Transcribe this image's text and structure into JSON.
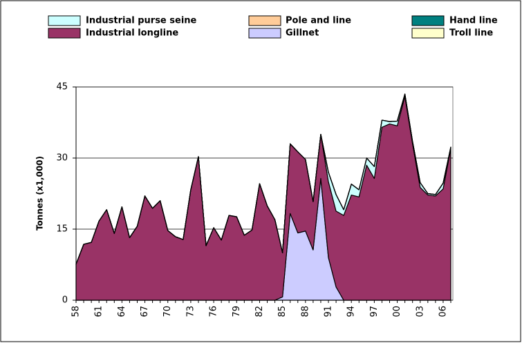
{
  "chart_data": {
    "type": "stacked-area",
    "y_label": "Tonnes (x1,000)",
    "categories": [
      "58",
      null,
      null,
      "61",
      null,
      null,
      "64",
      null,
      null,
      "67",
      null,
      null,
      "70",
      null,
      null,
      "73",
      null,
      null,
      "76",
      null,
      null,
      "79",
      null,
      null,
      "82",
      null,
      null,
      "85",
      null,
      null,
      "88",
      null,
      null,
      "91",
      null,
      null,
      "94",
      null,
      null,
      "97",
      null,
      null,
      "00",
      null,
      null,
      "03",
      null,
      null,
      "06",
      null
    ],
    "ylim": [
      0,
      45
    ],
    "yticks": [
      0,
      15,
      30,
      45
    ],
    "grid": true,
    "series": [
      {
        "name": "Gillnet",
        "color": "#ccccff",
        "values": [
          0,
          0,
          0,
          0,
          0,
          0,
          0,
          0,
          0,
          0,
          0,
          0,
          0,
          0,
          0,
          0,
          0,
          0,
          0,
          0,
          0,
          0,
          0,
          0,
          0,
          0,
          0,
          0.7,
          18.3,
          14.2,
          14.6,
          10.6,
          25.7,
          9.0,
          2.8,
          0,
          0,
          0,
          0,
          0,
          0,
          0,
          0,
          0,
          0,
          0,
          0,
          0,
          0,
          0
        ]
      },
      {
        "name": "Industrial longline",
        "color": "#993366",
        "values": [
          7.6,
          11.8,
          12.2,
          16.7,
          19.1,
          14.1,
          19.7,
          13.2,
          15.6,
          22.0,
          19.4,
          21.0,
          14.7,
          13.4,
          12.8,
          23.3,
          30.3,
          11.5,
          15.3,
          12.7,
          17.9,
          17.6,
          13.7,
          14.8,
          24.6,
          19.9,
          17.0,
          9.3,
          14.7,
          17.1,
          15.1,
          10.2,
          9.3,
          16.0,
          16.0,
          17.9,
          22.2,
          21.8,
          28.5,
          25.7,
          36.5,
          37.2,
          36.8,
          43.0,
          33.0,
          23.8,
          22.2,
          22.0,
          23.5,
          32.0
        ]
      },
      {
        "name": "Industrial purse seine",
        "color": "#ccffff",
        "values": [
          0,
          0,
          0,
          0,
          0,
          0,
          0,
          0,
          0,
          0,
          0,
          0,
          0,
          0,
          0,
          0,
          0,
          0,
          0,
          0,
          0,
          0,
          0,
          0,
          0,
          0,
          0,
          0,
          0,
          0,
          0,
          0,
          0,
          2,
          3.5,
          1.2,
          2.3,
          1.5,
          1.5,
          2.5,
          1.5,
          0.5,
          1,
          0.5,
          0.5,
          1,
          0.3,
          0.3,
          1.2,
          0.3
        ]
      },
      {
        "name": "Pole and line",
        "color": "#ffcc99",
        "values": [
          0,
          0,
          0,
          0,
          0,
          0,
          0,
          0,
          0,
          0,
          0,
          0,
          0,
          0,
          0,
          0,
          0,
          0,
          0,
          0,
          0,
          0,
          0,
          0,
          0,
          0,
          0,
          0,
          0,
          0,
          0,
          0,
          0,
          0,
          0,
          0,
          0,
          0,
          0,
          0,
          0,
          0,
          0,
          0,
          0,
          0,
          0,
          0,
          0,
          0
        ]
      },
      {
        "name": "Hand line",
        "color": "#008080",
        "values": [
          0,
          0,
          0,
          0,
          0,
          0,
          0,
          0,
          0,
          0,
          0,
          0,
          0,
          0,
          0,
          0,
          0,
          0,
          0,
          0,
          0,
          0,
          0,
          0,
          0,
          0,
          0,
          0,
          0,
          0,
          0,
          0,
          0,
          0,
          0,
          0,
          0,
          0,
          0,
          0,
          0,
          0,
          0,
          0,
          0,
          0,
          0,
          0,
          0,
          0
        ]
      },
      {
        "name": "Troll line",
        "color": "#ffffcc",
        "values": [
          0,
          0,
          0,
          0,
          0,
          0,
          0,
          0,
          0,
          0,
          0,
          0,
          0,
          0,
          0,
          0,
          0,
          0,
          0,
          0,
          0,
          0,
          0,
          0,
          0,
          0,
          0,
          0,
          0,
          0,
          0,
          0,
          0,
          0,
          0,
          0,
          0,
          0,
          0,
          0,
          0,
          0,
          0,
          0,
          0,
          0,
          0,
          0,
          0,
          0
        ]
      }
    ]
  }
}
